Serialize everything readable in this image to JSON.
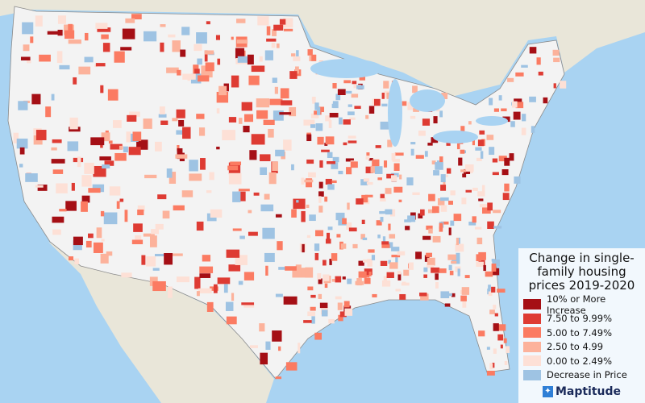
{
  "map": {
    "colors": {
      "ocean": "#a9d3f2",
      "foreign_land": "#e9e6d9",
      "us_land": "#f3f3f3",
      "borders": "#8a8a8a"
    }
  },
  "legend": {
    "title": "Change in single-family housing prices 2019-2020",
    "items": [
      {
        "label": "10% or More Increase",
        "color": "#a50f15"
      },
      {
        "label": "7.50 to 9.99%",
        "color": "#de3b33"
      },
      {
        "label": "5.00 to 7.49%",
        "color": "#fb7b62"
      },
      {
        "label": "2.50 to 4.99",
        "color": "#fcb29b"
      },
      {
        "label": "0.00 to 2.49%",
        "color": "#fde0d6"
      },
      {
        "label": "Decrease in Price",
        "color": "#9ec3e3"
      }
    ]
  },
  "brand": {
    "name": "Maptitude",
    "icon": "maptitude-logo-icon"
  }
}
